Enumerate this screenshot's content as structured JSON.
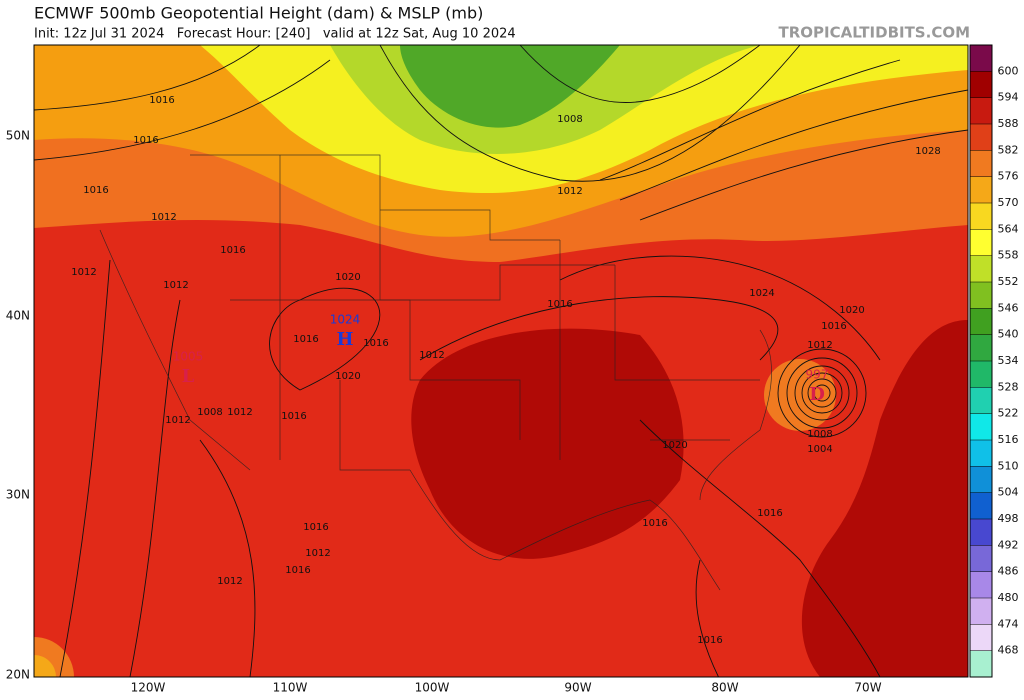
{
  "header": {
    "title": "ECMWF 500mb Geopotential Height (dam) & MSLP (mb)",
    "subtitle": "Init: 12z Jul 31 2024   Forecast Hour: [240]   valid at 12z Sat, Aug 10 2024",
    "brand": "TROPICALTIDBITS.COM"
  },
  "map": {
    "lat_labels": [
      "50N",
      "40N",
      "30N",
      "20N"
    ],
    "lon_labels": [
      "120W",
      "110W",
      "100W",
      "90W",
      "80W",
      "70W"
    ],
    "isobar_labels": [
      "1016",
      "1016",
      "1016",
      "1012",
      "1016",
      "1012",
      "1012",
      "1020",
      "1016",
      "1016",
      "1012",
      "1020",
      "1012",
      "1008",
      "1012",
      "1016",
      "1016",
      "1008",
      "1012",
      "1028",
      "1024",
      "1020",
      "1016",
      "1012",
      "1004",
      "1008",
      "1020",
      "1016",
      "1016",
      "1016",
      "1012",
      "1016",
      "1012",
      "1016"
    ],
    "centers": [
      {
        "value": "1024",
        "symbol": "H",
        "color": "#1a3ad8"
      },
      {
        "value": "1005",
        "symbol": "L",
        "color": "#d8204a"
      },
      {
        "value": "997",
        "symbol": "D",
        "color": "#d8204a"
      }
    ]
  },
  "colorbar": {
    "levels": [
      600,
      594,
      588,
      582,
      576,
      570,
      564,
      558,
      552,
      546,
      540,
      534,
      528,
      522,
      516,
      510,
      504,
      498,
      492,
      486,
      480,
      474,
      468
    ],
    "colors": [
      "#7a0a4a",
      "#a00000",
      "#c81a10",
      "#e04018",
      "#f07a20",
      "#f5a818",
      "#f8d820",
      "#ffff30",
      "#c0e028",
      "#80c020",
      "#40a020",
      "#30a840",
      "#20b868",
      "#20d0b0",
      "#10e8e8",
      "#10c0e8",
      "#1090d8",
      "#1060d0",
      "#4848d0",
      "#7868d8",
      "#a888e8",
      "#d0b0f0",
      "#ecd8f8",
      "#a8f0d0"
    ]
  }
}
